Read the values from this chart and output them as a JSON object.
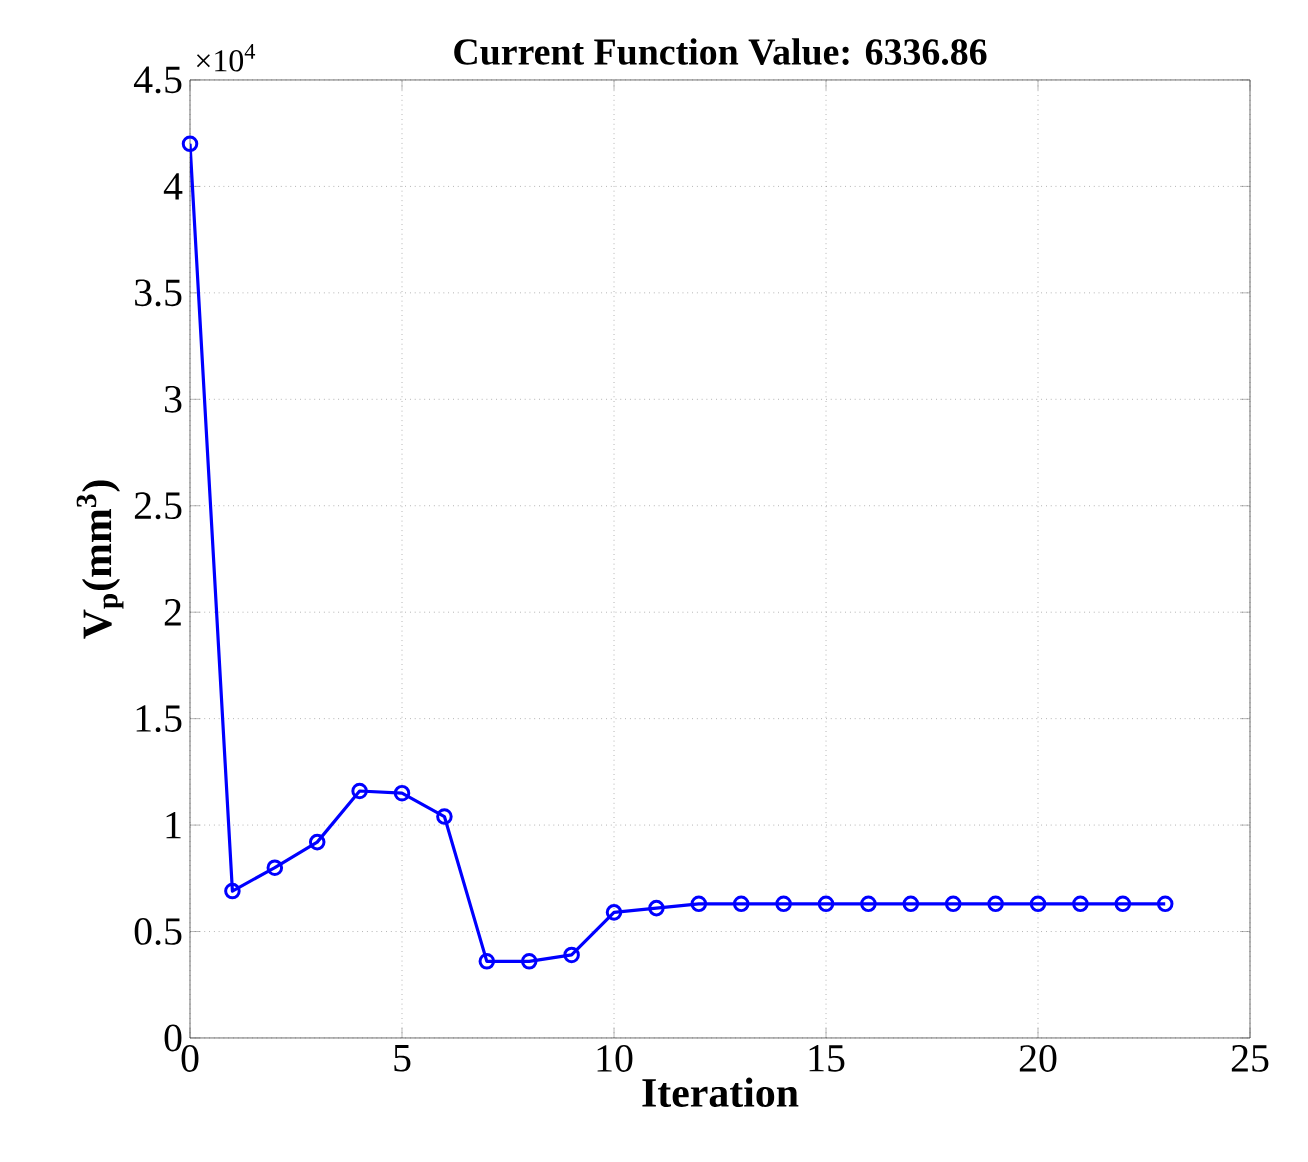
{
  "chart_data": {
    "type": "line",
    "title": "Current Function Value: 6336.86",
    "xlabel": "Iteration",
    "ylabel": "V$_{p}$(mm$^{3}$)",
    "annotations": [
      "×10$^{4}$"
    ],
    "x": [
      0,
      1,
      2,
      3,
      4,
      5,
      6,
      7,
      8,
      9,
      10,
      11,
      12,
      13,
      14,
      15,
      16,
      17,
      18,
      19,
      20,
      21,
      22,
      23
    ],
    "series": [
      {
        "color": "#0000ff",
        "values": [
          4.2,
          0.69,
          0.8,
          0.92,
          1.16,
          1.15,
          1.04,
          0.36,
          0.36,
          0.39,
          0.59,
          0.61,
          0.63,
          0.63,
          0.63,
          0.63,
          0.63,
          0.63,
          0.63,
          0.63,
          0.63,
          0.63,
          0.63,
          0.63
        ]
      }
    ],
    "xlim": [
      0,
      25
    ],
    "xticks": [
      0,
      5,
      10,
      15,
      20,
      25
    ],
    "ylim": [
      0,
      4.5
    ],
    "yticks": [
      0,
      0.5,
      1,
      1.5,
      2,
      2.5,
      3,
      3.5,
      4,
      4.5
    ],
    "grid": true,
    "marker": "circle",
    "line_style": "solid"
  }
}
